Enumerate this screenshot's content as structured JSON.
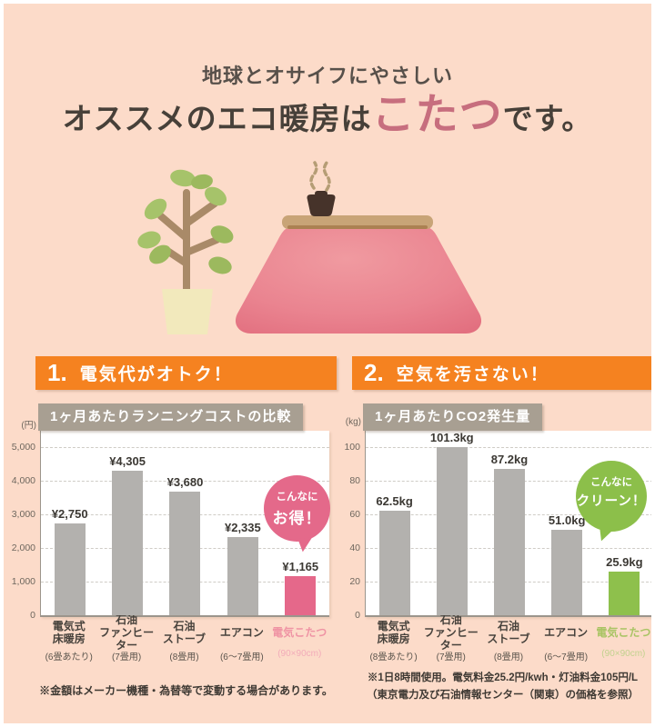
{
  "colors": {
    "background": "#fcdbc9",
    "banner_orange": "#f58220",
    "chart_title_bar": "#a89f92",
    "bar_gray": "#b3b1ae",
    "highlight_pink": "#e5688a",
    "highlight_green": "#8ec04c",
    "title_highlight_text": "#c76e7e"
  },
  "header": {
    "subtitle": "地球とオサイフにやさしい",
    "title_prefix": "オススメのエコ暖房は",
    "title_highlight": "こたつ",
    "title_suffix": "です。"
  },
  "illustration": {
    "label": "こたつと観葉植物のイラスト"
  },
  "sections": [
    {
      "number": "1.",
      "heading": "電気代がオトク！",
      "badge": {
        "line1": "こんなに",
        "line2": "お得！",
        "color": "#e4698a"
      },
      "footnote": "※金額はメーカー機種・為替等で変動する場合があります。"
    },
    {
      "number": "2.",
      "heading": "空気を汚さない！",
      "badge": {
        "line1": "こんなに",
        "line2": "クリーン！",
        "color": "#8cbf4a"
      },
      "footnote_lines": [
        "※1日8時間使用。電気料金25.2円/kwh・灯油料金105円/L",
        "（東京電力及び石油情報センター（関東）の価格を参照）"
      ]
    }
  ],
  "chart_data": [
    {
      "type": "bar",
      "title": "1ヶ月あたりランニングコストの比較",
      "unit": "(円)",
      "ylabel": "円",
      "categories": [
        "電気式\n床暖房",
        "石油\nファンヒーター",
        "石油\nストーブ",
        "エアコン",
        "電気こたつ"
      ],
      "category_notes": [
        "(6畳あたり)",
        "(7畳用)",
        "(8畳用)",
        "(6～7畳用)",
        "(90×90cm)"
      ],
      "values": [
        2750,
        4305,
        3680,
        2335,
        1165
      ],
      "value_labels": [
        "¥2,750",
        "¥4,305",
        "¥3,680",
        "¥2,335",
        "¥1,165"
      ],
      "ylim": [
        0,
        5500
      ],
      "yticks": [
        0,
        1000,
        2000,
        3000,
        4000,
        5000
      ],
      "ytick_labels": [
        "0",
        "1,000",
        "2,000",
        "3,000",
        "4,000",
        "5,000"
      ],
      "grid": "dashed-horizontal",
      "legend": false,
      "bar_color": "#b3b1ae",
      "highlight": {
        "index": 4,
        "bar_color": "#e5688a",
        "label_color": "#ef93a4",
        "note_color": "#f2abb9"
      }
    },
    {
      "type": "bar",
      "title": "1ヶ月あたりCO2発生量",
      "unit": "(kg)",
      "ylabel": "kg",
      "categories": [
        "電気式\n床暖房",
        "石油\nファンヒーター",
        "石油\nストーブ",
        "エアコン",
        "電気こたつ"
      ],
      "category_notes": [
        "(8畳あたり)",
        "(7畳用)",
        "(8畳用)",
        "(6～7畳用)",
        "(90×90cm)"
      ],
      "values": [
        62.5,
        101.3,
        87.2,
        51.0,
        25.9
      ],
      "value_labels": [
        "62.5kg",
        "101.3kg",
        "87.2kg",
        "51.0kg",
        "25.9kg"
      ],
      "ylim": [
        0,
        110
      ],
      "yticks": [
        0,
        20,
        40,
        60,
        80,
        100
      ],
      "ytick_labels": [
        "0",
        "20",
        "40",
        "60",
        "80",
        "100"
      ],
      "grid": "dashed-horizontal",
      "legend": false,
      "bar_color": "#b3b1ae",
      "highlight": {
        "index": 4,
        "bar_color": "#8ec04c",
        "label_color": "#a9c464",
        "note_color": "#c2d28e"
      }
    }
  ]
}
